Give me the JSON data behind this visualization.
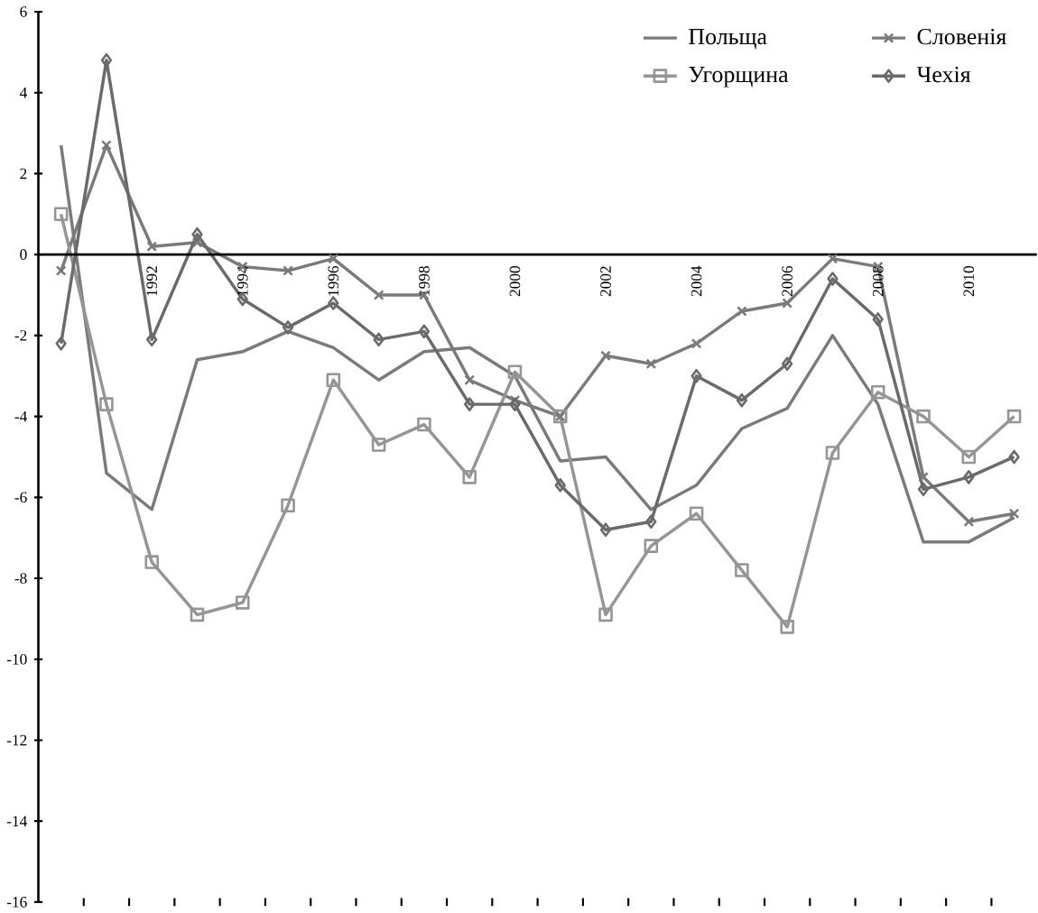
{
  "chart_data": {
    "type": "line",
    "x": [
      1990,
      1991,
      1992,
      1993,
      1994,
      1995,
      1996,
      1997,
      1998,
      1999,
      2000,
      2001,
      2002,
      2003,
      2004,
      2005,
      2006,
      2007,
      2008,
      2009,
      2010,
      2011
    ],
    "series": [
      {
        "name": "Польща",
        "color": "#7a7a7a",
        "marker": "none",
        "values": [
          2.7,
          -5.4,
          -6.3,
          -2.6,
          -2.4,
          -1.9,
          -2.3,
          -3.1,
          -2.4,
          -2.3,
          -3.0,
          -5.1,
          -5.0,
          -6.3,
          -5.7,
          -4.3,
          -3.8,
          -2.0,
          -3.7,
          -7.1,
          -7.1,
          -6.5
        ]
      },
      {
        "name": "Словенія",
        "color": "#7a7a7a",
        "marker": "cross",
        "values": [
          -0.4,
          2.7,
          0.2,
          0.3,
          -0.3,
          -0.4,
          -0.1,
          -1.0,
          -1.0,
          -3.1,
          -3.6,
          -4.0,
          -2.5,
          -2.7,
          -2.2,
          -1.4,
          -1.2,
          -0.1,
          -0.3,
          -5.5,
          -6.6,
          -6.4
        ]
      },
      {
        "name": "Угорщина",
        "color": "#959595",
        "marker": "square",
        "values": [
          1.0,
          -3.7,
          -7.6,
          -8.9,
          -8.6,
          -6.2,
          -3.1,
          -4.7,
          -4.2,
          -5.5,
          -2.9,
          -4.0,
          -8.9,
          -7.2,
          -6.4,
          -7.8,
          -9.2,
          -4.9,
          -3.4,
          -4.0,
          -5.0,
          -4.0
        ]
      },
      {
        "name": "Чехія",
        "color": "#6a6a6a",
        "marker": "diamond",
        "values": [
          -2.2,
          4.8,
          -2.1,
          0.5,
          -1.1,
          -1.8,
          -1.2,
          -2.1,
          -1.9,
          -3.7,
          -3.7,
          -5.7,
          -6.8,
          -6.6,
          -3.0,
          -3.6,
          -2.7,
          -0.6,
          -1.6,
          -5.8,
          -5.5,
          -5.0
        ]
      }
    ],
    "xlim": [
      1989.5,
      2011.5
    ],
    "xticks": [
      1992,
      1994,
      1996,
      1998,
      2000,
      2002,
      2004,
      2006,
      2008,
      2010
    ],
    "ylim": [
      -16,
      6
    ],
    "yticks": [
      -16,
      -14,
      -12,
      -10,
      -8,
      -6,
      -4,
      -2,
      0,
      2,
      4,
      6
    ],
    "legend": "top right",
    "line_style": "solid"
  }
}
